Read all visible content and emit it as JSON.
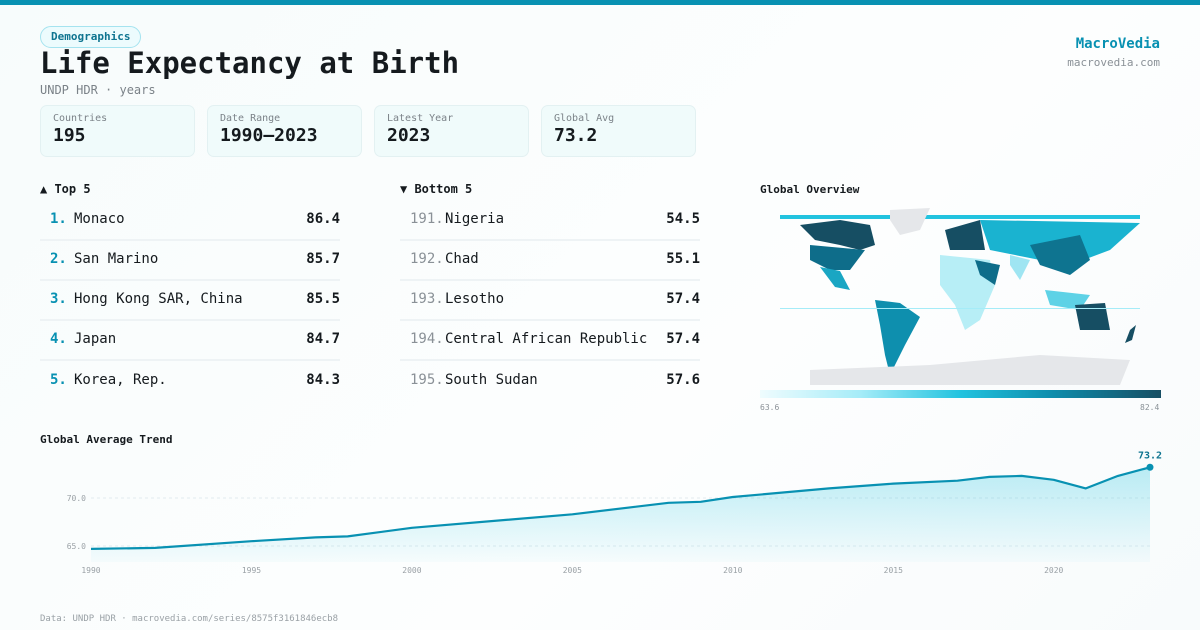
{
  "header": {
    "category": "Demographics",
    "title": "Life Expectancy at Birth",
    "subtitle": "UNDP HDR · years",
    "brand": "MacroVedia",
    "brand_url": "macrovedia.com"
  },
  "stats": [
    {
      "label": "Countries",
      "value": "195"
    },
    {
      "label": "Date Range",
      "value": "1990–2023"
    },
    {
      "label": "Latest Year",
      "value": "2023"
    },
    {
      "label": "Global Avg",
      "value": "73.2"
    }
  ],
  "top": {
    "heading": "▲ Top 5",
    "items": [
      {
        "rank": "1.",
        "name": "Monaco",
        "value": "86.4"
      },
      {
        "rank": "2.",
        "name": "San Marino",
        "value": "85.7"
      },
      {
        "rank": "3.",
        "name": "Hong Kong SAR, China",
        "value": "85.5"
      },
      {
        "rank": "4.",
        "name": "Japan",
        "value": "84.7"
      },
      {
        "rank": "5.",
        "name": "Korea, Rep.",
        "value": "84.3"
      }
    ]
  },
  "bottom": {
    "heading": "▼ Bottom 5",
    "items": [
      {
        "rank": "191.",
        "name": "Nigeria",
        "value": "54.5"
      },
      {
        "rank": "192.",
        "name": "Chad",
        "value": "55.1"
      },
      {
        "rank": "193.",
        "name": "Lesotho",
        "value": "57.4"
      },
      {
        "rank": "194.",
        "name": "Central African Republic",
        "value": "57.4"
      },
      {
        "rank": "195.",
        "name": "South Sudan",
        "value": "57.6"
      }
    ]
  },
  "map": {
    "heading": "Global Overview",
    "legend_min": "63.6",
    "legend_max": "82.4",
    "colors": {
      "low": "#effcfe",
      "mid": "#22c3df",
      "high": "#164e63",
      "nodata": "#e5e7ea"
    }
  },
  "chart_data": {
    "type": "area",
    "title": "Global Average Trend",
    "x": [
      1990,
      1992,
      1995,
      1997,
      1998,
      2000,
      2005,
      2008,
      2009,
      2010,
      2013,
      2015,
      2017,
      2018,
      2019,
      2020,
      2021,
      2022,
      2023
    ],
    "values": [
      64.7,
      64.8,
      65.5,
      65.9,
      66.0,
      66.9,
      68.3,
      69.5,
      69.6,
      70.1,
      71.0,
      71.5,
      71.8,
      72.2,
      72.3,
      71.9,
      71.0,
      72.3,
      73.2
    ],
    "xticks": [
      "1990",
      "1995",
      "2000",
      "2005",
      "2010",
      "2015",
      "2020"
    ],
    "yticks": [
      "65.0",
      "70.0"
    ],
    "xlim": [
      1990,
      2023
    ],
    "ylim": [
      63.5,
      74.5
    ],
    "last_label": "73.2",
    "grid": true,
    "color": "#0891b2"
  },
  "footer": "Data: UNDP HDR · macrovedia.com/series/8575f3161846ecb8"
}
